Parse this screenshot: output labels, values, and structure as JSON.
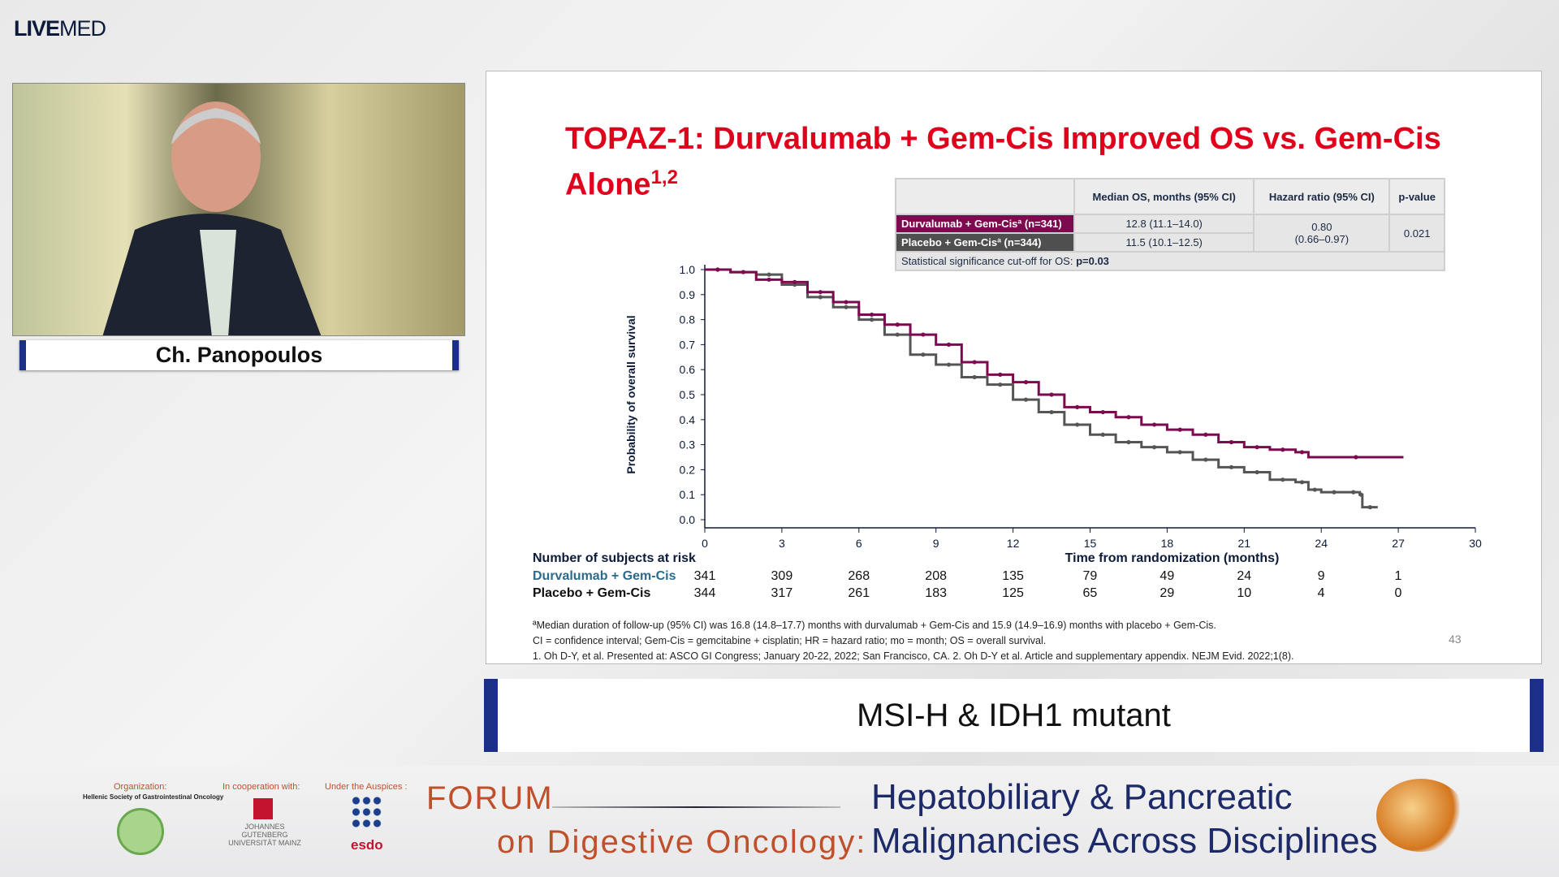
{
  "brand": {
    "logo_bold": "LIVE",
    "logo_rest": "MED"
  },
  "speaker": {
    "name": "Ch. Panopoulos"
  },
  "slide": {
    "title": "TOPAZ-1: Durvalumab + Gem-Cis Improved OS vs. Gem-Cis Alone",
    "title_sup": "1,2",
    "table": {
      "headers": [
        "",
        "Median OS, months (95% CI)",
        "Hazard ratio (95% CI)",
        "p-value"
      ],
      "rows": [
        {
          "label": "Durvalumab + Gem-Cisª (n=341)",
          "median": "12.8 (11.1–14.0)"
        },
        {
          "label": "Placebo + Gem-Cisª (n=344)",
          "median": "11.5 (10.1–12.5)"
        }
      ],
      "hr": "0.80",
      "hr_ci": "(0.66–0.97)",
      "p": "0.021",
      "footer": "Statistical significance cut-off for OS: ",
      "footer_bold": "p=0.03"
    },
    "risk": {
      "title": "Number of subjects at risk",
      "rows": [
        {
          "label": "Durvalumab + Gem-Cis",
          "values": [
            "341",
            "309",
            "268",
            "208",
            "135",
            "79",
            "49",
            "24",
            "9",
            "1"
          ]
        },
        {
          "label": "Placebo + Gem-Cis",
          "values": [
            "344",
            "317",
            "261",
            "183",
            "125",
            "65",
            "29",
            "10",
            "4",
            "0"
          ]
        }
      ]
    },
    "footnotes": [
      "ªMedian duration of follow-up (95% CI) was 16.8 (14.8–17.7) months with durvalumab + Gem-Cis and 15.9 (14.9–16.9) months with placebo + Gem-Cis.",
      "CI = confidence interval; Gem-Cis = gemcitabine + cisplatin; HR = hazard ratio; mo = month; OS = overall survival.",
      "1. Oh D-Y, et al. Presented at: ASCO GI Congress; January 20-22, 2022; San Francisco, CA. 2. Oh D-Y et al. Article and supplementary appendix. NEJM Evid. 2022;1(8)."
    ],
    "page_number": "43"
  },
  "chart_data": {
    "type": "line",
    "xlabel": "Time from randomization (months)",
    "ylabel": "Probability of overall survival",
    "xlim": [
      0,
      30
    ],
    "ylim": [
      0,
      1
    ],
    "xticks": [
      "0",
      "3",
      "6",
      "9",
      "12",
      "15",
      "18",
      "21",
      "24",
      "27",
      "30"
    ],
    "yticks": [
      "0.0",
      "0.1",
      "0.2",
      "0.3",
      "0.4",
      "0.5",
      "0.6",
      "0.7",
      "0.8",
      "0.9",
      "1.0"
    ],
    "series": [
      {
        "name": "Durvalumab + Gem-Cis",
        "color": "#7c0a4f",
        "x": [
          0,
          1,
          2,
          3,
          4,
          5,
          6,
          7,
          8,
          9,
          10,
          11,
          12,
          13,
          14,
          15,
          16,
          17,
          18,
          19,
          20,
          21,
          22,
          23,
          23.5,
          27.2
        ],
        "y": [
          1.0,
          0.99,
          0.96,
          0.95,
          0.91,
          0.87,
          0.82,
          0.78,
          0.74,
          0.7,
          0.63,
          0.58,
          0.55,
          0.5,
          0.45,
          0.43,
          0.41,
          0.38,
          0.36,
          0.34,
          0.31,
          0.29,
          0.28,
          0.27,
          0.25,
          0.25
        ]
      },
      {
        "name": "Placebo + Gem-Cis",
        "color": "#555555",
        "x": [
          0,
          1,
          2,
          3,
          4,
          5,
          6,
          7,
          8,
          9,
          10,
          11,
          12,
          13,
          14,
          15,
          16,
          17,
          18,
          19,
          20,
          21,
          22,
          23,
          23.5,
          24,
          25,
          25.5,
          25.6,
          26.2
        ],
        "y": [
          1.0,
          0.99,
          0.98,
          0.94,
          0.89,
          0.85,
          0.8,
          0.74,
          0.66,
          0.62,
          0.57,
          0.54,
          0.48,
          0.43,
          0.38,
          0.34,
          0.31,
          0.29,
          0.27,
          0.24,
          0.21,
          0.19,
          0.16,
          0.15,
          0.12,
          0.11,
          0.11,
          0.1,
          0.05,
          0.05
        ]
      }
    ]
  },
  "banner": {
    "org_label": "Organization:",
    "org_name": "Hellenic Society of Gastrointestinal Oncology",
    "coop_label": "In cooperation with:",
    "coop_name": "JOHANNES GUTENBERG UNIVERSITÄT MAINZ",
    "ausp_label": "Under the Auspices :",
    "ausp_name": "esdo",
    "forum1": "FORUM",
    "forum2": "on Digestive Oncology:",
    "heading1": "Hepatobiliary & Pancreatic",
    "heading2": "Malignancies Across Disciplines"
  },
  "subtitle": "MSI-H & IDH1 mutant"
}
